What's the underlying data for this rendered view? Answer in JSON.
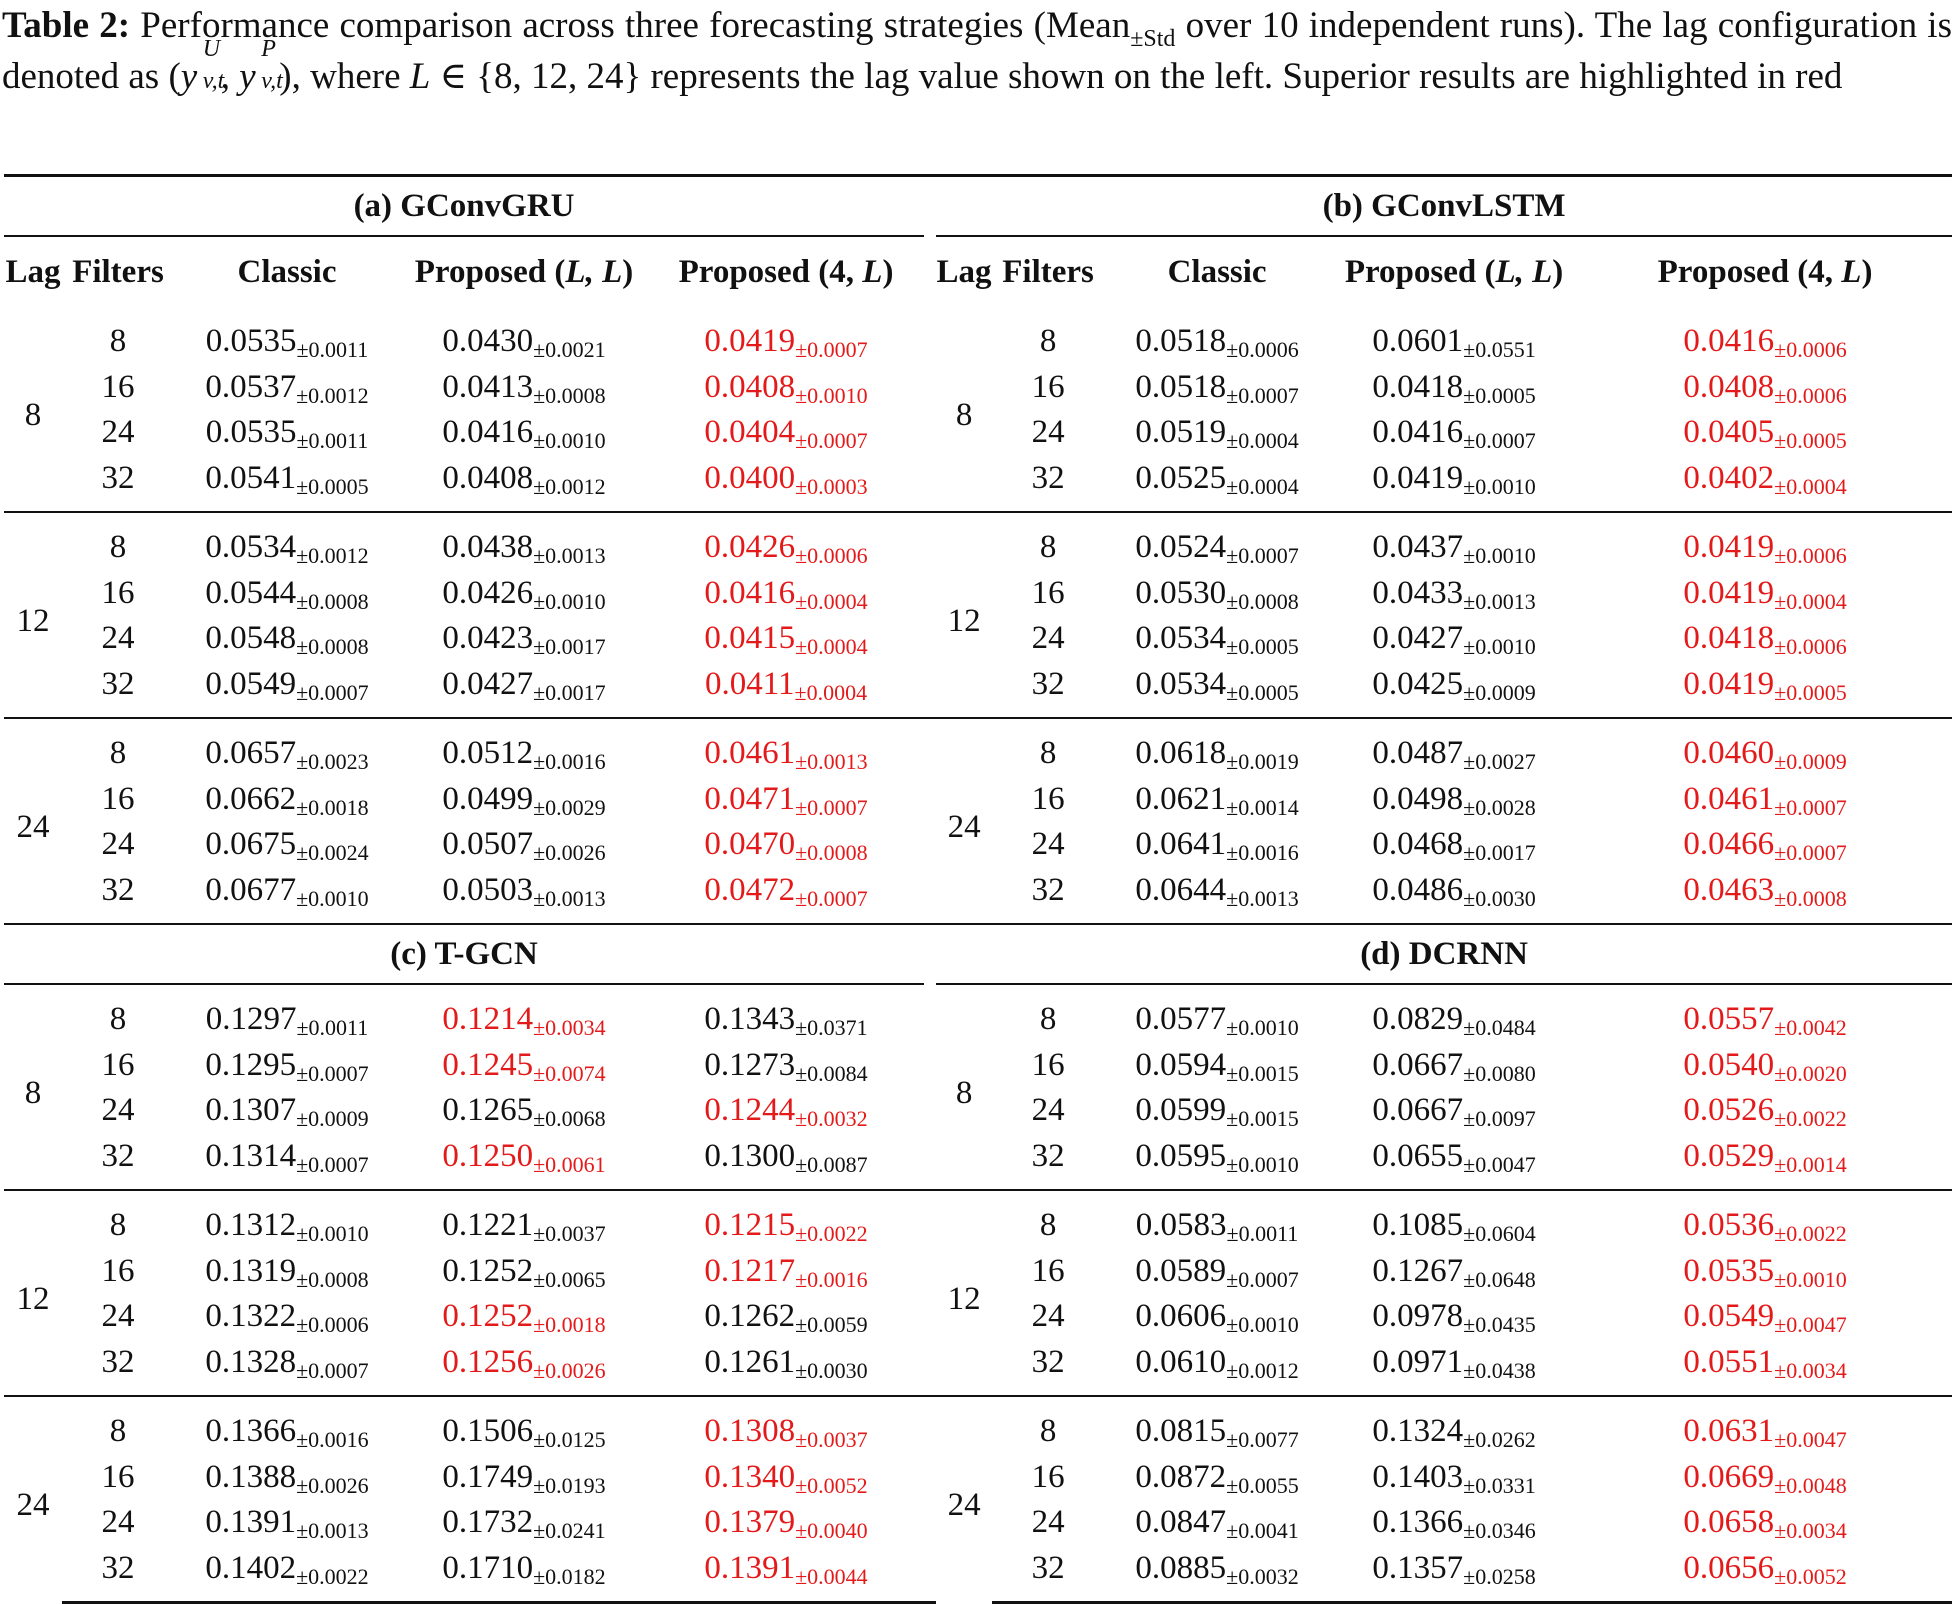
{
  "caption": {
    "label": "Table 2:",
    "part1": " Performance comparison across three forecasting strategies (Mean",
    "pm_std": "±Std",
    "part2": " over 10 independent runs). The lag configuration is denoted as (",
    "y": "y",
    "sup_u": "U",
    "sup_p": "P",
    "sub_vt": "v,t",
    "comma": ", ",
    "part3": "), where ",
    "L": "L",
    "part4": " ∈ {8, 12, 24} represents the lag value shown on the left. Superior results are highlighted in red"
  },
  "highlight_color": "#e41a1a",
  "columns": {
    "lag": "Lag",
    "filters": "Filters",
    "classic": "Classic",
    "proposed_ll_prefix": "Proposed (",
    "proposed_ll_var": "L, L",
    "proposed_4l_prefix": "Proposed (4, ",
    "proposed_4l_var": "L",
    "close": ")"
  },
  "panels": [
    {
      "title": "(a) GConvGRU",
      "groups": [
        {
          "lag": "8",
          "rows": [
            {
              "f": "8",
              "c": [
                "0.0535",
                "±0.0011"
              ],
              "p1": [
                "0.0430",
                "±0.0021"
              ],
              "p2": [
                "0.0419",
                "±0.0007"
              ],
              "best": "p2"
            },
            {
              "f": "16",
              "c": [
                "0.0537",
                "±0.0012"
              ],
              "p1": [
                "0.0413",
                "±0.0008"
              ],
              "p2": [
                "0.0408",
                "±0.0010"
              ],
              "best": "p2"
            },
            {
              "f": "24",
              "c": [
                "0.0535",
                "±0.0011"
              ],
              "p1": [
                "0.0416",
                "±0.0010"
              ],
              "p2": [
                "0.0404",
                "±0.0007"
              ],
              "best": "p2"
            },
            {
              "f": "32",
              "c": [
                "0.0541",
                "±0.0005"
              ],
              "p1": [
                "0.0408",
                "±0.0012"
              ],
              "p2": [
                "0.0400",
                "±0.0003"
              ],
              "best": "p2"
            }
          ]
        },
        {
          "lag": "12",
          "rows": [
            {
              "f": "8",
              "c": [
                "0.0534",
                "±0.0012"
              ],
              "p1": [
                "0.0438",
                "±0.0013"
              ],
              "p2": [
                "0.0426",
                "±0.0006"
              ],
              "best": "p2"
            },
            {
              "f": "16",
              "c": [
                "0.0544",
                "±0.0008"
              ],
              "p1": [
                "0.0426",
                "±0.0010"
              ],
              "p2": [
                "0.0416",
                "±0.0004"
              ],
              "best": "p2"
            },
            {
              "f": "24",
              "c": [
                "0.0548",
                "±0.0008"
              ],
              "p1": [
                "0.0423",
                "±0.0017"
              ],
              "p2": [
                "0.0415",
                "±0.0004"
              ],
              "best": "p2"
            },
            {
              "f": "32",
              "c": [
                "0.0549",
                "±0.0007"
              ],
              "p1": [
                "0.0427",
                "±0.0017"
              ],
              "p2": [
                "0.0411",
                "±0.0004"
              ],
              "best": "p2"
            }
          ]
        },
        {
          "lag": "24",
          "rows": [
            {
              "f": "8",
              "c": [
                "0.0657",
                "±0.0023"
              ],
              "p1": [
                "0.0512",
                "±0.0016"
              ],
              "p2": [
                "0.0461",
                "±0.0013"
              ],
              "best": "p2"
            },
            {
              "f": "16",
              "c": [
                "0.0662",
                "±0.0018"
              ],
              "p1": [
                "0.0499",
                "±0.0029"
              ],
              "p2": [
                "0.0471",
                "±0.0007"
              ],
              "best": "p2"
            },
            {
              "f": "24",
              "c": [
                "0.0675",
                "±0.0024"
              ],
              "p1": [
                "0.0507",
                "±0.0026"
              ],
              "p2": [
                "0.0470",
                "±0.0008"
              ],
              "best": "p2"
            },
            {
              "f": "32",
              "c": [
                "0.0677",
                "±0.0010"
              ],
              "p1": [
                "0.0503",
                "±0.0013"
              ],
              "p2": [
                "0.0472",
                "±0.0007"
              ],
              "best": "p2"
            }
          ]
        }
      ]
    },
    {
      "title": "(b) GConvLSTM",
      "groups": [
        {
          "lag": "8",
          "rows": [
            {
              "f": "8",
              "c": [
                "0.0518",
                "±0.0006"
              ],
              "p1": [
                "0.0601",
                "±0.0551"
              ],
              "p2": [
                "0.0416",
                "±0.0006"
              ],
              "best": "p2"
            },
            {
              "f": "16",
              "c": [
                "0.0518",
                "±0.0007"
              ],
              "p1": [
                "0.0418",
                "±0.0005"
              ],
              "p2": [
                "0.0408",
                "±0.0006"
              ],
              "best": "p2"
            },
            {
              "f": "24",
              "c": [
                "0.0519",
                "±0.0004"
              ],
              "p1": [
                "0.0416",
                "±0.0007"
              ],
              "p2": [
                "0.0405",
                "±0.0005"
              ],
              "best": "p2"
            },
            {
              "f": "32",
              "c": [
                "0.0525",
                "±0.0004"
              ],
              "p1": [
                "0.0419",
                "±0.0010"
              ],
              "p2": [
                "0.0402",
                "±0.0004"
              ],
              "best": "p2"
            }
          ]
        },
        {
          "lag": "12",
          "rows": [
            {
              "f": "8",
              "c": [
                "0.0524",
                "±0.0007"
              ],
              "p1": [
                "0.0437",
                "±0.0010"
              ],
              "p2": [
                "0.0419",
                "±0.0006"
              ],
              "best": "p2"
            },
            {
              "f": "16",
              "c": [
                "0.0530",
                "±0.0008"
              ],
              "p1": [
                "0.0433",
                "±0.0013"
              ],
              "p2": [
                "0.0419",
                "±0.0004"
              ],
              "best": "p2"
            },
            {
              "f": "24",
              "c": [
                "0.0534",
                "±0.0005"
              ],
              "p1": [
                "0.0427",
                "±0.0010"
              ],
              "p2": [
                "0.0418",
                "±0.0006"
              ],
              "best": "p2"
            },
            {
              "f": "32",
              "c": [
                "0.0534",
                "±0.0005"
              ],
              "p1": [
                "0.0425",
                "±0.0009"
              ],
              "p2": [
                "0.0419",
                "±0.0005"
              ],
              "best": "p2"
            }
          ]
        },
        {
          "lag": "24",
          "rows": [
            {
              "f": "8",
              "c": [
                "0.0618",
                "±0.0019"
              ],
              "p1": [
                "0.0487",
                "±0.0027"
              ],
              "p2": [
                "0.0460",
                "±0.0009"
              ],
              "best": "p2"
            },
            {
              "f": "16",
              "c": [
                "0.0621",
                "±0.0014"
              ],
              "p1": [
                "0.0498",
                "±0.0028"
              ],
              "p2": [
                "0.0461",
                "±0.0007"
              ],
              "best": "p2"
            },
            {
              "f": "24",
              "c": [
                "0.0641",
                "±0.0016"
              ],
              "p1": [
                "0.0468",
                "±0.0017"
              ],
              "p2": [
                "0.0466",
                "±0.0007"
              ],
              "best": "p2"
            },
            {
              "f": "32",
              "c": [
                "0.0644",
                "±0.0013"
              ],
              "p1": [
                "0.0486",
                "±0.0030"
              ],
              "p2": [
                "0.0463",
                "±0.0008"
              ],
              "best": "p2"
            }
          ]
        }
      ]
    },
    {
      "title": "(c) T-GCN",
      "groups": [
        {
          "lag": "8",
          "rows": [
            {
              "f": "8",
              "c": [
                "0.1297",
                "±0.0011"
              ],
              "p1": [
                "0.1214",
                "±0.0034"
              ],
              "p2": [
                "0.1343",
                "±0.0371"
              ],
              "best": "p1"
            },
            {
              "f": "16",
              "c": [
                "0.1295",
                "±0.0007"
              ],
              "p1": [
                "0.1245",
                "±0.0074"
              ],
              "p2": [
                "0.1273",
                "±0.0084"
              ],
              "best": "p1"
            },
            {
              "f": "24",
              "c": [
                "0.1307",
                "±0.0009"
              ],
              "p1": [
                "0.1265",
                "±0.0068"
              ],
              "p2": [
                "0.1244",
                "±0.0032"
              ],
              "best": "p2"
            },
            {
              "f": "32",
              "c": [
                "0.1314",
                "±0.0007"
              ],
              "p1": [
                "0.1250",
                "±0.0061"
              ],
              "p2": [
                "0.1300",
                "±0.0087"
              ],
              "best": "p1"
            }
          ]
        },
        {
          "lag": "12",
          "rows": [
            {
              "f": "8",
              "c": [
                "0.1312",
                "±0.0010"
              ],
              "p1": [
                "0.1221",
                "±0.0037"
              ],
              "p2": [
                "0.1215",
                "±0.0022"
              ],
              "best": "p2"
            },
            {
              "f": "16",
              "c": [
                "0.1319",
                "±0.0008"
              ],
              "p1": [
                "0.1252",
                "±0.0065"
              ],
              "p2": [
                "0.1217",
                "±0.0016"
              ],
              "best": "p2"
            },
            {
              "f": "24",
              "c": [
                "0.1322",
                "±0.0006"
              ],
              "p1": [
                "0.1252",
                "±0.0018"
              ],
              "p2": [
                "0.1262",
                "±0.0059"
              ],
              "best": "p1"
            },
            {
              "f": "32",
              "c": [
                "0.1328",
                "±0.0007"
              ],
              "p1": [
                "0.1256",
                "±0.0026"
              ],
              "p2": [
                "0.1261",
                "±0.0030"
              ],
              "best": "p1"
            }
          ]
        },
        {
          "lag": "24",
          "rows": [
            {
              "f": "8",
              "c": [
                "0.1366",
                "±0.0016"
              ],
              "p1": [
                "0.1506",
                "±0.0125"
              ],
              "p2": [
                "0.1308",
                "±0.0037"
              ],
              "best": "p2"
            },
            {
              "f": "16",
              "c": [
                "0.1388",
                "±0.0026"
              ],
              "p1": [
                "0.1749",
                "±0.0193"
              ],
              "p2": [
                "0.1340",
                "±0.0052"
              ],
              "best": "p2"
            },
            {
              "f": "24",
              "c": [
                "0.1391",
                "±0.0013"
              ],
              "p1": [
                "0.1732",
                "±0.0241"
              ],
              "p2": [
                "0.1379",
                "±0.0040"
              ],
              "best": "p2"
            },
            {
              "f": "32",
              "c": [
                "0.1402",
                "±0.0022"
              ],
              "p1": [
                "0.1710",
                "±0.0182"
              ],
              "p2": [
                "0.1391",
                "±0.0044"
              ],
              "best": "p2"
            }
          ]
        }
      ]
    },
    {
      "title": "(d) DCRNN",
      "groups": [
        {
          "lag": "8",
          "rows": [
            {
              "f": "8",
              "c": [
                "0.0577",
                "±0.0010"
              ],
              "p1": [
                "0.0829",
                "±0.0484"
              ],
              "p2": [
                "0.0557",
                "±0.0042"
              ],
              "best": "p2"
            },
            {
              "f": "16",
              "c": [
                "0.0594",
                "±0.0015"
              ],
              "p1": [
                "0.0667",
                "±0.0080"
              ],
              "p2": [
                "0.0540",
                "±0.0020"
              ],
              "best": "p2"
            },
            {
              "f": "24",
              "c": [
                "0.0599",
                "±0.0015"
              ],
              "p1": [
                "0.0667",
                "±0.0097"
              ],
              "p2": [
                "0.0526",
                "±0.0022"
              ],
              "best": "p2"
            },
            {
              "f": "32",
              "c": [
                "0.0595",
                "±0.0010"
              ],
              "p1": [
                "0.0655",
                "±0.0047"
              ],
              "p2": [
                "0.0529",
                "±0.0014"
              ],
              "best": "p2"
            }
          ]
        },
        {
          "lag": "12",
          "rows": [
            {
              "f": "8",
              "c": [
                "0.0583",
                "±0.0011"
              ],
              "p1": [
                "0.1085",
                "±0.0604"
              ],
              "p2": [
                "0.0536",
                "±0.0022"
              ],
              "best": "p2"
            },
            {
              "f": "16",
              "c": [
                "0.0589",
                "±0.0007"
              ],
              "p1": [
                "0.1267",
                "±0.0648"
              ],
              "p2": [
                "0.0535",
                "±0.0010"
              ],
              "best": "p2"
            },
            {
              "f": "24",
              "c": [
                "0.0606",
                "±0.0010"
              ],
              "p1": [
                "0.0978",
                "±0.0435"
              ],
              "p2": [
                "0.0549",
                "±0.0047"
              ],
              "best": "p2"
            },
            {
              "f": "32",
              "c": [
                "0.0610",
                "±0.0012"
              ],
              "p1": [
                "0.0971",
                "±0.0438"
              ],
              "p2": [
                "0.0551",
                "±0.0034"
              ],
              "best": "p2"
            }
          ]
        },
        {
          "lag": "24",
          "rows": [
            {
              "f": "8",
              "c": [
                "0.0815",
                "±0.0077"
              ],
              "p1": [
                "0.1324",
                "±0.0262"
              ],
              "p2": [
                "0.0631",
                "±0.0047"
              ],
              "best": "p2"
            },
            {
              "f": "16",
              "c": [
                "0.0872",
                "±0.0055"
              ],
              "p1": [
                "0.1403",
                "±0.0331"
              ],
              "p2": [
                "0.0669",
                "±0.0048"
              ],
              "best": "p2"
            },
            {
              "f": "24",
              "c": [
                "0.0847",
                "±0.0041"
              ],
              "p1": [
                "0.1366",
                "±0.0346"
              ],
              "p2": [
                "0.0658",
                "±0.0034"
              ],
              "best": "p2"
            },
            {
              "f": "32",
              "c": [
                "0.0885",
                "±0.0032"
              ],
              "p1": [
                "0.1357",
                "±0.0258"
              ],
              "p2": [
                "0.0656",
                "±0.0052"
              ],
              "best": "p2"
            }
          ]
        }
      ]
    }
  ]
}
